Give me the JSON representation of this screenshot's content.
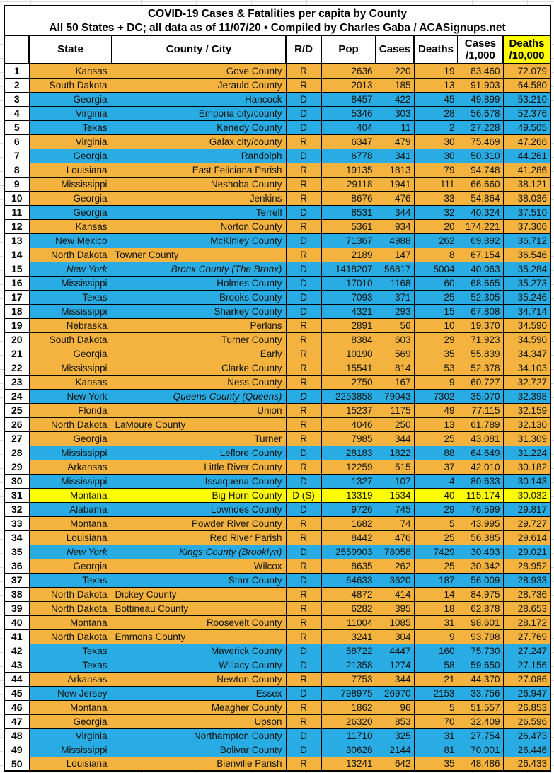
{
  "title": {
    "line1": "COVID-19 Cases & Fatalities per capita by County",
    "line2": "All 50 States + DC; all data as of 11/07/20  • Compiled by Charles Gaba / ACASignups.net"
  },
  "header": {
    "rank": "",
    "state": "State",
    "county": "County / City",
    "rd": "R/D",
    "pop": "Pop",
    "cases": "Cases",
    "deaths": "Deaths",
    "cases_rate_line1": "Cases",
    "cases_rate_line2": "/1,000",
    "deaths_rate_line1": "Deaths",
    "deaths_rate_line2": "/10,000"
  },
  "colors": {
    "row_republican": "#F4B23E",
    "row_democrat": "#29ACE3",
    "row_highlight": "#FFFF00",
    "deaths_header_bg": "#FFFF00",
    "border": "#000000",
    "text": "#151515"
  },
  "chart_data": {
    "type": "table",
    "title": "COVID-19 Cases & Fatalities per capita by County",
    "subtitle": "All 50 States + DC; all data as of 11/07/20 • Compiled by Charles Gaba / ACASignups.net",
    "columns": [
      "#",
      "State",
      "County / City",
      "R/D",
      "Pop",
      "Cases",
      "Deaths",
      "Cases /1,000",
      "Deaths /10,000"
    ],
    "row_color_meaning": {
      "R": "Republican county (orange)",
      "D": "Democratic county (blue)",
      "H": "highlighted row (yellow)"
    },
    "rows": [
      {
        "n": "1",
        "state": "Kansas",
        "county": "Gove County",
        "rd": "R",
        "pop": "2636",
        "cases": "220",
        "deaths": "19",
        "c1k": "83.460",
        "d10k": "72.079",
        "party": "R"
      },
      {
        "n": "2",
        "state": "South Dakota",
        "county": "Jerauld County",
        "rd": "R",
        "pop": "2013",
        "cases": "185",
        "deaths": "13",
        "c1k": "91.903",
        "d10k": "64.580",
        "party": "R"
      },
      {
        "n": "3",
        "state": "Georgia",
        "county": "Hancock",
        "rd": "D",
        "pop": "8457",
        "cases": "422",
        "deaths": "45",
        "c1k": "49.899",
        "d10k": "53.210",
        "party": "D"
      },
      {
        "n": "4",
        "state": "Virginia",
        "county": "Emporia city/county",
        "rd": "D",
        "pop": "5346",
        "cases": "303",
        "deaths": "28",
        "c1k": "56.678",
        "d10k": "52.376",
        "party": "D"
      },
      {
        "n": "5",
        "state": "Texas",
        "county": "Kenedy County",
        "rd": "D",
        "pop": "404",
        "cases": "11",
        "deaths": "2",
        "c1k": "27.228",
        "d10k": "49.505",
        "party": "D"
      },
      {
        "n": "6",
        "state": "Virginia",
        "county": "Galax city/county",
        "rd": "R",
        "pop": "6347",
        "cases": "479",
        "deaths": "30",
        "c1k": "75.469",
        "d10k": "47.266",
        "party": "R"
      },
      {
        "n": "7",
        "state": "Georgia",
        "county": "Randolph",
        "rd": "D",
        "pop": "6778",
        "cases": "341",
        "deaths": "30",
        "c1k": "50.310",
        "d10k": "44.261",
        "party": "D"
      },
      {
        "n": "8",
        "state": "Louisiana",
        "county": "East Feliciana Parish",
        "rd": "R",
        "pop": "19135",
        "cases": "1813",
        "deaths": "79",
        "c1k": "94.748",
        "d10k": "41.286",
        "party": "R"
      },
      {
        "n": "9",
        "state": "Mississippi",
        "county": "Neshoba County",
        "rd": "R",
        "pop": "29118",
        "cases": "1941",
        "deaths": "111",
        "c1k": "66.660",
        "d10k": "38.121",
        "party": "R"
      },
      {
        "n": "10",
        "state": "Georgia",
        "county": "Jenkins",
        "rd": "R",
        "pop": "8676",
        "cases": "476",
        "deaths": "33",
        "c1k": "54.864",
        "d10k": "38.036",
        "party": "R"
      },
      {
        "n": "11",
        "state": "Georgia",
        "county": "Terrell",
        "rd": "D",
        "pop": "8531",
        "cases": "344",
        "deaths": "32",
        "c1k": "40.324",
        "d10k": "37.510",
        "party": "D"
      },
      {
        "n": "12",
        "state": "Kansas",
        "county": "Norton County",
        "rd": "R",
        "pop": "5361",
        "cases": "934",
        "deaths": "20",
        "c1k": "174.221",
        "d10k": "37.306",
        "party": "R"
      },
      {
        "n": "13",
        "state": "New Mexico",
        "county": "McKinley County",
        "rd": "D",
        "pop": "71367",
        "cases": "4988",
        "deaths": "262",
        "c1k": "69.892",
        "d10k": "36.712",
        "party": "D"
      },
      {
        "n": "14",
        "state": "North Dakota",
        "county": "Towner County",
        "rd": "R",
        "pop": "2189",
        "cases": "147",
        "deaths": "8",
        "c1k": "67.154",
        "d10k": "36.546",
        "party": "R",
        "align": "left"
      },
      {
        "n": "15",
        "state": "New York",
        "county": "Bronx County (The Bronx)",
        "rd": "D",
        "pop": "1418207",
        "cases": "56817",
        "deaths": "5004",
        "c1k": "40.063",
        "d10k": "35.284",
        "party": "D",
        "italics": [
          "state",
          "county"
        ]
      },
      {
        "n": "16",
        "state": "Mississippi",
        "county": "Holmes County",
        "rd": "D",
        "pop": "17010",
        "cases": "1168",
        "deaths": "60",
        "c1k": "68.665",
        "d10k": "35.273",
        "party": "D"
      },
      {
        "n": "17",
        "state": "Texas",
        "county": "Brooks County",
        "rd": "D",
        "pop": "7093",
        "cases": "371",
        "deaths": "25",
        "c1k": "52.305",
        "d10k": "35.246",
        "party": "D"
      },
      {
        "n": "18",
        "state": "Mississippi",
        "county": "Sharkey County",
        "rd": "D",
        "pop": "4321",
        "cases": "293",
        "deaths": "15",
        "c1k": "67.808",
        "d10k": "34.714",
        "party": "D"
      },
      {
        "n": "19",
        "state": "Nebraska",
        "county": "Perkins",
        "rd": "R",
        "pop": "2891",
        "cases": "56",
        "deaths": "10",
        "c1k": "19.370",
        "d10k": "34.590",
        "party": "R"
      },
      {
        "n": "20",
        "state": "South Dakota",
        "county": "Turner County",
        "rd": "R",
        "pop": "8384",
        "cases": "603",
        "deaths": "29",
        "c1k": "71.923",
        "d10k": "34.590",
        "party": "R"
      },
      {
        "n": "21",
        "state": "Georgia",
        "county": "Early",
        "rd": "R",
        "pop": "10190",
        "cases": "569",
        "deaths": "35",
        "c1k": "55.839",
        "d10k": "34.347",
        "party": "R"
      },
      {
        "n": "22",
        "state": "Mississippi",
        "county": "Clarke County",
        "rd": "R",
        "pop": "15541",
        "cases": "814",
        "deaths": "53",
        "c1k": "52.378",
        "d10k": "34.103",
        "party": "R"
      },
      {
        "n": "23",
        "state": "Kansas",
        "county": "Ness County",
        "rd": "R",
        "pop": "2750",
        "cases": "167",
        "deaths": "9",
        "c1k": "60.727",
        "d10k": "32.727",
        "party": "R"
      },
      {
        "n": "24",
        "state": "New York",
        "county": "Queens County (Queens)",
        "rd": "D",
        "pop": "2253858",
        "cases": "79043",
        "deaths": "7302",
        "c1k": "35.070",
        "d10k": "32.398",
        "party": "D",
        "italics": [
          "county",
          "rd"
        ]
      },
      {
        "n": "25",
        "state": "Florida",
        "county": "Union",
        "rd": "R",
        "pop": "15237",
        "cases": "1175",
        "deaths": "49",
        "c1k": "77.115",
        "d10k": "32.159",
        "party": "R"
      },
      {
        "n": "26",
        "state": "North Dakota",
        "county": "LaMoure County",
        "rd": "R",
        "pop": "4046",
        "cases": "250",
        "deaths": "13",
        "c1k": "61.789",
        "d10k": "32.130",
        "party": "R",
        "align": "left"
      },
      {
        "n": "27",
        "state": "Georgia",
        "county": "Turner",
        "rd": "R",
        "pop": "7985",
        "cases": "344",
        "deaths": "25",
        "c1k": "43.081",
        "d10k": "31.309",
        "party": "R"
      },
      {
        "n": "28",
        "state": "Mississippi",
        "county": "Leflore County",
        "rd": "D",
        "pop": "28183",
        "cases": "1822",
        "deaths": "88",
        "c1k": "64.649",
        "d10k": "31.224",
        "party": "D"
      },
      {
        "n": "29",
        "state": "Arkansas",
        "county": "Little River County",
        "rd": "R",
        "pop": "12259",
        "cases": "515",
        "deaths": "37",
        "c1k": "42.010",
        "d10k": "30.182",
        "party": "R"
      },
      {
        "n": "30",
        "state": "Mississippi",
        "county": "Issaquena County",
        "rd": "D",
        "pop": "1327",
        "cases": "107",
        "deaths": "4",
        "c1k": "80.633",
        "d10k": "30.143",
        "party": "D"
      },
      {
        "n": "31",
        "state": "Montana",
        "county": "Big Horn County",
        "rd": "D (S)",
        "pop": "13319",
        "cases": "1534",
        "deaths": "40",
        "c1k": "115.174",
        "d10k": "30.032",
        "party": "H"
      },
      {
        "n": "32",
        "state": "Alabama",
        "county": "Lowndes County",
        "rd": "D",
        "pop": "9726",
        "cases": "745",
        "deaths": "29",
        "c1k": "76.599",
        "d10k": "29.817",
        "party": "D"
      },
      {
        "n": "33",
        "state": "Montana",
        "county": "Powder River County",
        "rd": "R",
        "pop": "1682",
        "cases": "74",
        "deaths": "5",
        "c1k": "43.995",
        "d10k": "29.727",
        "party": "R"
      },
      {
        "n": "34",
        "state": "Louisiana",
        "county": "Red River Parish",
        "rd": "R",
        "pop": "8442",
        "cases": "476",
        "deaths": "25",
        "c1k": "56.385",
        "d10k": "29.614",
        "party": "R"
      },
      {
        "n": "35",
        "state": "New York",
        "county": "Kings County (Brooklyn)",
        "rd": "D",
        "pop": "2559903",
        "cases": "78058",
        "deaths": "7429",
        "c1k": "30.493",
        "d10k": "29.021",
        "party": "D",
        "italics": [
          "state",
          "county"
        ]
      },
      {
        "n": "36",
        "state": "Georgia",
        "county": "Wilcox",
        "rd": "R",
        "pop": "8635",
        "cases": "262",
        "deaths": "25",
        "c1k": "30.342",
        "d10k": "28.952",
        "party": "R"
      },
      {
        "n": "37",
        "state": "Texas",
        "county": "Starr County",
        "rd": "D",
        "pop": "64633",
        "cases": "3620",
        "deaths": "187",
        "c1k": "56.009",
        "d10k": "28.933",
        "party": "D"
      },
      {
        "n": "38",
        "state": "North Dakota",
        "county": "Dickey County",
        "rd": "R",
        "pop": "4872",
        "cases": "414",
        "deaths": "14",
        "c1k": "84.975",
        "d10k": "28.736",
        "party": "R",
        "align": "left"
      },
      {
        "n": "39",
        "state": "North Dakota",
        "county": "Bottineau County",
        "rd": "R",
        "pop": "6282",
        "cases": "395",
        "deaths": "18",
        "c1k": "62.878",
        "d10k": "28.653",
        "party": "R",
        "align": "left"
      },
      {
        "n": "40",
        "state": "Montana",
        "county": "Roosevelt County",
        "rd": "R",
        "pop": "11004",
        "cases": "1085",
        "deaths": "31",
        "c1k": "98.601",
        "d10k": "28.172",
        "party": "R"
      },
      {
        "n": "41",
        "state": "North Dakota",
        "county": "Emmons County",
        "rd": "R",
        "pop": "3241",
        "cases": "304",
        "deaths": "9",
        "c1k": "93.798",
        "d10k": "27.769",
        "party": "R",
        "align": "left"
      },
      {
        "n": "42",
        "state": "Texas",
        "county": "Maverick County",
        "rd": "D",
        "pop": "58722",
        "cases": "4447",
        "deaths": "160",
        "c1k": "75.730",
        "d10k": "27.247",
        "party": "D"
      },
      {
        "n": "43",
        "state": "Texas",
        "county": "Willacy County",
        "rd": "D",
        "pop": "21358",
        "cases": "1274",
        "deaths": "58",
        "c1k": "59.650",
        "d10k": "27.156",
        "party": "D"
      },
      {
        "n": "44",
        "state": "Arkansas",
        "county": "Newton County",
        "rd": "R",
        "pop": "7753",
        "cases": "344",
        "deaths": "21",
        "c1k": "44.370",
        "d10k": "27.086",
        "party": "R"
      },
      {
        "n": "45",
        "state": "New Jersey",
        "county": "Essex",
        "rd": "D",
        "pop": "798975",
        "cases": "26970",
        "deaths": "2153",
        "c1k": "33.756",
        "d10k": "26.947",
        "party": "D"
      },
      {
        "n": "46",
        "state": "Montana",
        "county": "Meagher County",
        "rd": "R",
        "pop": "1862",
        "cases": "96",
        "deaths": "5",
        "c1k": "51.557",
        "d10k": "26.853",
        "party": "R"
      },
      {
        "n": "47",
        "state": "Georgia",
        "county": "Upson",
        "rd": "R",
        "pop": "26320",
        "cases": "853",
        "deaths": "70",
        "c1k": "32.409",
        "d10k": "26.596",
        "party": "R"
      },
      {
        "n": "48",
        "state": "Virginia",
        "county": "Northampton County",
        "rd": "D",
        "pop": "11710",
        "cases": "325",
        "deaths": "31",
        "c1k": "27.754",
        "d10k": "26.473",
        "party": "D"
      },
      {
        "n": "49",
        "state": "Mississippi",
        "county": "Bolivar County",
        "rd": "D",
        "pop": "30628",
        "cases": "2144",
        "deaths": "81",
        "c1k": "70.001",
        "d10k": "26.446",
        "party": "D"
      },
      {
        "n": "50",
        "state": "Louisiana",
        "county": "Bienville Parish",
        "rd": "R",
        "pop": "13241",
        "cases": "642",
        "deaths": "35",
        "c1k": "48.486",
        "d10k": "26.433",
        "party": "R"
      }
    ]
  }
}
